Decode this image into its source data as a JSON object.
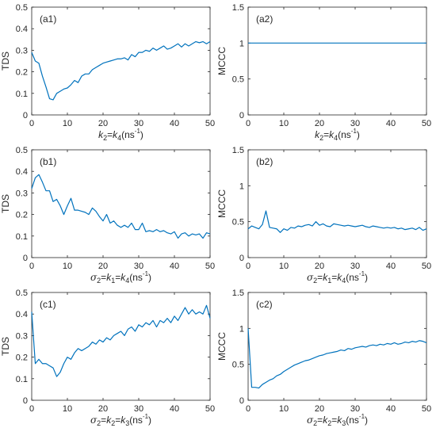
{
  "chart_data": [
    {
      "id": "a1",
      "type": "line",
      "tag": "(a1)",
      "ylabel": "TDS",
      "xlabel": [
        {
          "t": "k",
          "i": 1
        },
        {
          "t": "2",
          "sub": 1
        },
        {
          "t": "=",
          "i": 0
        },
        {
          "t": "k",
          "i": 1
        },
        {
          "t": "4",
          "sub": 1
        },
        {
          "t": "(ns",
          "i": 0
        },
        {
          "t": "-1",
          "sup": 1
        },
        {
          "t": ")",
          "i": 0
        }
      ],
      "xlim": [
        0,
        50
      ],
      "ylim": [
        0,
        0.5
      ],
      "xticks": [
        0,
        10,
        20,
        30,
        40,
        50
      ],
      "xtick_labels": [
        "0",
        "10",
        "20",
        "30",
        "40",
        "50"
      ],
      "yticks": [
        0,
        0.1,
        0.2,
        0.3,
        0.4,
        0.5
      ],
      "ytick_labels": [
        "0",
        "0.1",
        "0.2",
        "0.3",
        "0.4",
        "0.5"
      ],
      "color": "#0072bd",
      "series": [
        {
          "x": [
            0,
            1,
            2,
            3,
            4,
            5,
            6,
            7,
            8,
            9,
            10,
            11,
            12,
            13,
            14,
            15,
            16,
            17,
            18,
            19,
            20,
            21,
            22,
            23,
            24,
            25,
            26,
            27,
            28,
            29,
            30,
            31,
            32,
            33,
            34,
            35,
            36,
            37,
            38,
            39,
            40,
            41,
            42,
            43,
            44,
            45,
            46,
            47,
            48,
            49,
            50
          ],
          "values": [
            0.29,
            0.25,
            0.24,
            0.18,
            0.13,
            0.075,
            0.07,
            0.1,
            0.11,
            0.12,
            0.125,
            0.14,
            0.16,
            0.15,
            0.18,
            0.19,
            0.19,
            0.21,
            0.22,
            0.23,
            0.24,
            0.245,
            0.25,
            0.255,
            0.26,
            0.26,
            0.265,
            0.255,
            0.28,
            0.27,
            0.29,
            0.29,
            0.3,
            0.295,
            0.31,
            0.3,
            0.31,
            0.32,
            0.305,
            0.31,
            0.32,
            0.33,
            0.315,
            0.33,
            0.32,
            0.33,
            0.34,
            0.335,
            0.34,
            0.33,
            0.34
          ]
        }
      ]
    },
    {
      "id": "a2",
      "type": "line",
      "tag": "(a2)",
      "ylabel": "MCCC",
      "xlabel": [
        {
          "t": "k",
          "i": 1
        },
        {
          "t": "2",
          "sub": 1
        },
        {
          "t": "=",
          "i": 0
        },
        {
          "t": "k",
          "i": 1
        },
        {
          "t": "4",
          "sub": 1
        },
        {
          "t": "(ns",
          "i": 0
        },
        {
          "t": "-1",
          "sup": 1
        },
        {
          "t": ")",
          "i": 0
        }
      ],
      "xlim": [
        0,
        50
      ],
      "ylim": [
        0,
        1.5
      ],
      "xticks": [
        0,
        10,
        20,
        30,
        40,
        50
      ],
      "xtick_labels": [
        "0",
        "10",
        "20",
        "30",
        "40",
        "50"
      ],
      "yticks": [
        0,
        0.5,
        1,
        1.5
      ],
      "ytick_labels": [
        "0",
        "0.5",
        "1",
        "1.5"
      ],
      "color": "#0072bd",
      "series": [
        {
          "x": [
            0,
            50
          ],
          "values": [
            1,
            1
          ]
        }
      ]
    },
    {
      "id": "b1",
      "type": "line",
      "tag": "(b1)",
      "ylabel": "TDS",
      "xlabel": [
        {
          "t": "σ",
          "g": 1
        },
        {
          "t": "2",
          "sub": 1
        },
        {
          "t": "=",
          "i": 0
        },
        {
          "t": "k",
          "i": 1
        },
        {
          "t": "1",
          "sub": 1
        },
        {
          "t": "=",
          "i": 0
        },
        {
          "t": "k",
          "i": 1
        },
        {
          "t": "4",
          "sub": 1
        },
        {
          "t": "(ns",
          "i": 0
        },
        {
          "t": "-1",
          "sup": 1
        },
        {
          "t": ")",
          "i": 0
        }
      ],
      "xlim": [
        0,
        50
      ],
      "ylim": [
        0,
        0.5
      ],
      "xticks": [
        0,
        10,
        20,
        30,
        40,
        50
      ],
      "xtick_labels": [
        "0",
        "10",
        "20",
        "30",
        "40",
        "50"
      ],
      "yticks": [
        0,
        0.1,
        0.2,
        0.3,
        0.4,
        0.5
      ],
      "ytick_labels": [
        "0",
        "0.1",
        "0.2",
        "0.3",
        "0.4",
        "0.5"
      ],
      "color": "#0072bd",
      "series": [
        {
          "x": [
            0,
            1,
            2,
            3,
            4,
            5,
            6,
            7,
            8,
            9,
            10,
            11,
            12,
            13,
            14,
            15,
            16,
            17,
            18,
            19,
            20,
            21,
            22,
            23,
            24,
            25,
            26,
            27,
            28,
            29,
            30,
            31,
            32,
            33,
            34,
            35,
            36,
            37,
            38,
            39,
            40,
            41,
            42,
            43,
            44,
            45,
            46,
            47,
            48,
            49,
            50
          ],
          "values": [
            0.32,
            0.37,
            0.385,
            0.35,
            0.31,
            0.31,
            0.26,
            0.27,
            0.24,
            0.2,
            0.24,
            0.275,
            0.22,
            0.22,
            0.215,
            0.21,
            0.2,
            0.23,
            0.215,
            0.19,
            0.17,
            0.2,
            0.16,
            0.17,
            0.15,
            0.14,
            0.15,
            0.14,
            0.16,
            0.13,
            0.13,
            0.16,
            0.12,
            0.125,
            0.12,
            0.13,
            0.12,
            0.125,
            0.115,
            0.11,
            0.12,
            0.09,
            0.11,
            0.115,
            0.1,
            0.11,
            0.105,
            0.11,
            0.09,
            0.115,
            0.11
          ]
        }
      ]
    },
    {
      "id": "b2",
      "type": "line",
      "tag": "(b2)",
      "ylabel": "MCCC",
      "xlabel": [
        {
          "t": "σ",
          "g": 1
        },
        {
          "t": "2",
          "sub": 1
        },
        {
          "t": "=",
          "i": 0
        },
        {
          "t": "k",
          "i": 1
        },
        {
          "t": "1",
          "sub": 1
        },
        {
          "t": "=",
          "i": 0
        },
        {
          "t": "k",
          "i": 1
        },
        {
          "t": "4",
          "sub": 1
        },
        {
          "t": "(ns",
          "i": 0
        },
        {
          "t": "-1",
          "sup": 1
        },
        {
          "t": ")",
          "i": 0
        }
      ],
      "xlim": [
        0,
        50
      ],
      "ylim": [
        0,
        1.5
      ],
      "xticks": [
        0,
        10,
        20,
        30,
        40,
        50
      ],
      "xtick_labels": [
        "0",
        "10",
        "20",
        "30",
        "40",
        "50"
      ],
      "yticks": [
        0,
        0.5,
        1,
        1.5
      ],
      "ytick_labels": [
        "0",
        "0.5",
        "1",
        "1.5"
      ],
      "color": "#0072bd",
      "series": [
        {
          "x": [
            0,
            1,
            2,
            3,
            4,
            5,
            6,
            7,
            8,
            9,
            10,
            11,
            12,
            13,
            14,
            15,
            16,
            17,
            18,
            19,
            20,
            21,
            22,
            23,
            24,
            25,
            26,
            27,
            28,
            29,
            30,
            31,
            32,
            33,
            34,
            35,
            36,
            37,
            38,
            39,
            40,
            41,
            42,
            43,
            44,
            45,
            46,
            47,
            48,
            49,
            50
          ],
          "values": [
            0.4,
            0.44,
            0.42,
            0.4,
            0.46,
            0.65,
            0.42,
            0.41,
            0.4,
            0.35,
            0.4,
            0.38,
            0.42,
            0.41,
            0.44,
            0.43,
            0.45,
            0.46,
            0.44,
            0.5,
            0.45,
            0.47,
            0.44,
            0.43,
            0.47,
            0.46,
            0.45,
            0.44,
            0.45,
            0.44,
            0.43,
            0.44,
            0.45,
            0.43,
            0.42,
            0.44,
            0.43,
            0.42,
            0.41,
            0.42,
            0.41,
            0.42,
            0.4,
            0.41,
            0.39,
            0.4,
            0.41,
            0.39,
            0.42,
            0.38,
            0.4
          ]
        }
      ]
    },
    {
      "id": "c1",
      "type": "line",
      "tag": "(c1)",
      "ylabel": "TDS",
      "xlabel": [
        {
          "t": "σ",
          "g": 1
        },
        {
          "t": "2",
          "sub": 1
        },
        {
          "t": "=",
          "i": 0
        },
        {
          "t": "k",
          "i": 1
        },
        {
          "t": "2",
          "sub": 1
        },
        {
          "t": "=",
          "i": 0
        },
        {
          "t": "k",
          "i": 1
        },
        {
          "t": "3",
          "sub": 1
        },
        {
          "t": "(ns",
          "i": 0
        },
        {
          "t": "-1",
          "sup": 1
        },
        {
          "t": ")",
          "i": 0
        }
      ],
      "xlim": [
        0,
        50
      ],
      "ylim": [
        0,
        0.5
      ],
      "xticks": [
        0,
        10,
        20,
        30,
        40,
        50
      ],
      "xtick_labels": [
        "0",
        "10",
        "20",
        "30",
        "40",
        "50"
      ],
      "yticks": [
        0,
        0.1,
        0.2,
        0.3,
        0.4,
        0.5
      ],
      "ytick_labels": [
        "0",
        "0.1",
        "0.2",
        "0.3",
        "0.4",
        "0.5"
      ],
      "color": "#0072bd",
      "series": [
        {
          "x": [
            0,
            1,
            2,
            3,
            4,
            5,
            6,
            7,
            8,
            9,
            10,
            11,
            12,
            13,
            14,
            15,
            16,
            17,
            18,
            19,
            20,
            21,
            22,
            23,
            24,
            25,
            26,
            27,
            28,
            29,
            30,
            31,
            32,
            33,
            34,
            35,
            36,
            37,
            38,
            39,
            40,
            41,
            42,
            43,
            44,
            45,
            46,
            47,
            48,
            49,
            50
          ],
          "values": [
            0.41,
            0.17,
            0.19,
            0.17,
            0.17,
            0.16,
            0.15,
            0.11,
            0.13,
            0.17,
            0.2,
            0.19,
            0.22,
            0.24,
            0.23,
            0.24,
            0.25,
            0.27,
            0.26,
            0.28,
            0.27,
            0.29,
            0.28,
            0.3,
            0.31,
            0.32,
            0.3,
            0.33,
            0.34,
            0.32,
            0.35,
            0.34,
            0.36,
            0.35,
            0.37,
            0.34,
            0.37,
            0.36,
            0.38,
            0.36,
            0.39,
            0.37,
            0.4,
            0.43,
            0.4,
            0.42,
            0.4,
            0.41,
            0.4,
            0.44,
            0.38
          ]
        }
      ]
    },
    {
      "id": "c2",
      "type": "line",
      "tag": "(c2)",
      "ylabel": "MCCC",
      "xlabel": [
        {
          "t": "σ",
          "g": 1
        },
        {
          "t": "2",
          "sub": 1
        },
        {
          "t": "=",
          "i": 0
        },
        {
          "t": "k",
          "i": 1
        },
        {
          "t": "2",
          "sub": 1
        },
        {
          "t": "=",
          "i": 0
        },
        {
          "t": "k",
          "i": 1
        },
        {
          "t": "3",
          "sub": 1
        },
        {
          "t": "(ns",
          "i": 0
        },
        {
          "t": "-1",
          "sup": 1
        },
        {
          "t": ")",
          "i": 0
        }
      ],
      "xlim": [
        0,
        50
      ],
      "ylim": [
        0,
        1.5
      ],
      "xticks": [
        0,
        10,
        20,
        30,
        40,
        50
      ],
      "xtick_labels": [
        "0",
        "10",
        "20",
        "30",
        "40",
        "50"
      ],
      "yticks": [
        0,
        0.5,
        1,
        1.5
      ],
      "ytick_labels": [
        "0",
        "0.5",
        "1",
        "1.5"
      ],
      "color": "#0072bd",
      "series": [
        {
          "x": [
            0,
            1,
            2,
            3,
            4,
            5,
            6,
            7,
            8,
            9,
            10,
            11,
            12,
            13,
            14,
            15,
            16,
            17,
            18,
            19,
            20,
            21,
            22,
            23,
            24,
            25,
            26,
            27,
            28,
            29,
            30,
            31,
            32,
            33,
            34,
            35,
            36,
            37,
            38,
            39,
            40,
            41,
            42,
            43,
            44,
            45,
            46,
            47,
            48,
            49,
            50
          ],
          "values": [
            1.0,
            0.18,
            0.18,
            0.17,
            0.22,
            0.25,
            0.28,
            0.3,
            0.34,
            0.36,
            0.4,
            0.43,
            0.46,
            0.49,
            0.51,
            0.53,
            0.55,
            0.56,
            0.58,
            0.6,
            0.62,
            0.63,
            0.65,
            0.66,
            0.67,
            0.68,
            0.7,
            0.69,
            0.72,
            0.71,
            0.73,
            0.74,
            0.75,
            0.74,
            0.76,
            0.77,
            0.76,
            0.78,
            0.77,
            0.79,
            0.78,
            0.8,
            0.78,
            0.79,
            0.81,
            0.8,
            0.82,
            0.81,
            0.83,
            0.82,
            0.8
          ]
        }
      ]
    }
  ]
}
